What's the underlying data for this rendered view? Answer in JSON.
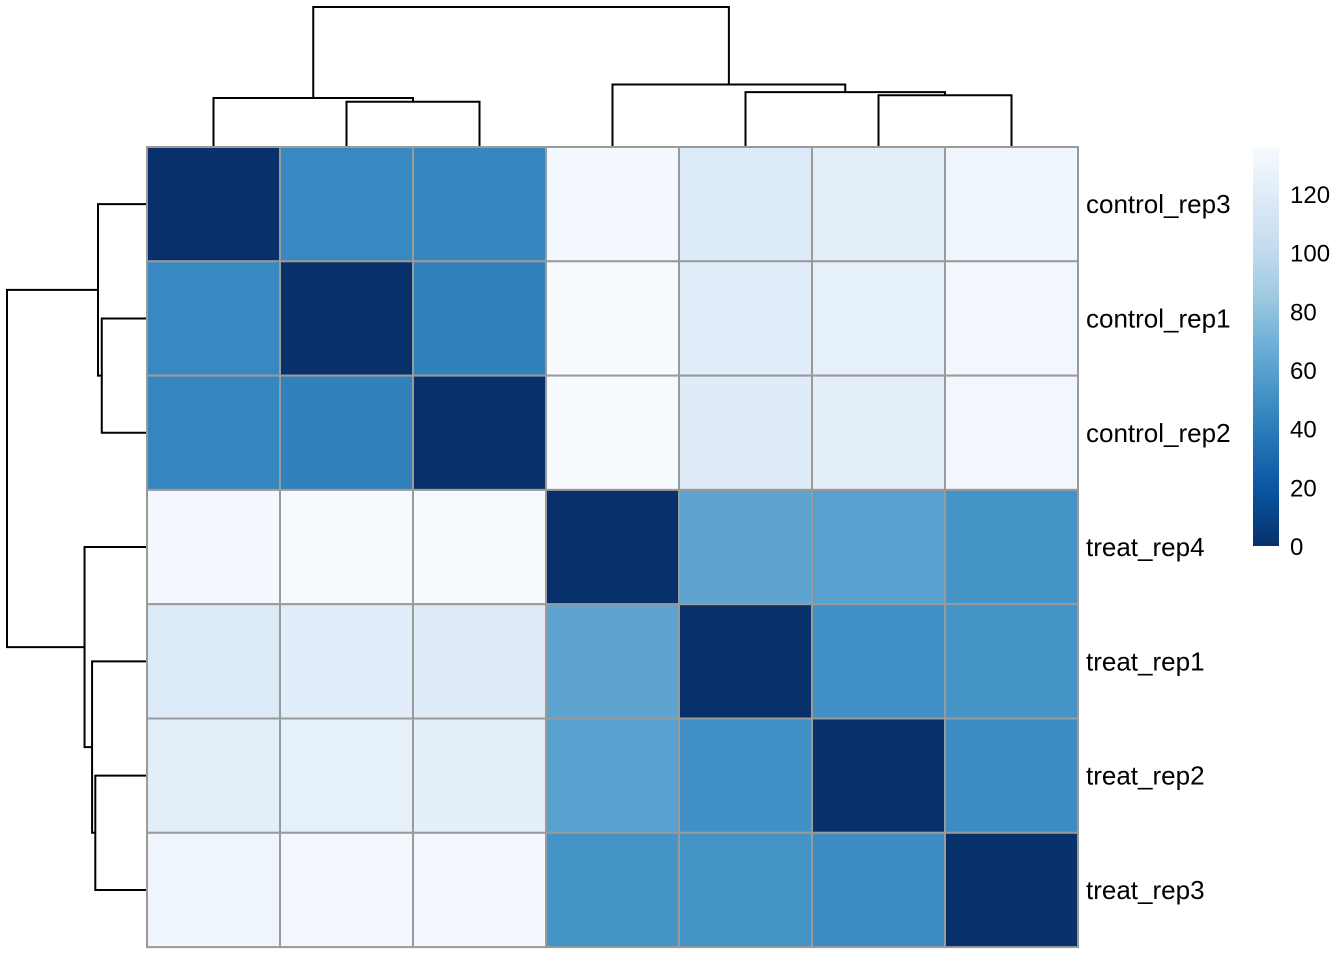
{
  "chart_data": {
    "type": "heatmap",
    "title": "",
    "row_labels": [
      "control_rep3",
      "control_rep1",
      "control_rep2",
      "treat_rep4",
      "treat_rep1",
      "treat_rep2",
      "treat_rep3"
    ],
    "column_labels": [],
    "values": [
      [
        0,
        46,
        45,
        133,
        118,
        122,
        130
      ],
      [
        46,
        0,
        42,
        135,
        121,
        124,
        132
      ],
      [
        45,
        42,
        0,
        135,
        120,
        123,
        132
      ],
      [
        133,
        135,
        135,
        0,
        62,
        60,
        52
      ],
      [
        118,
        121,
        120,
        62,
        0,
        50,
        52
      ],
      [
        122,
        124,
        123,
        60,
        50,
        0,
        48
      ],
      [
        130,
        132,
        132,
        52,
        52,
        48,
        0
      ]
    ],
    "colorbar": {
      "min": 0,
      "max": 136,
      "ticks": [
        0,
        20,
        40,
        60,
        80,
        100,
        120
      ],
      "colors": [
        "#08306b",
        "#08519c",
        "#2171b5",
        "#4292c6",
        "#6baed6",
        "#9ecae1",
        "#c6dbef",
        "#deebf7",
        "#f7fbff"
      ]
    },
    "row_dendrogram": {
      "leaf_order": [
        "control_rep3",
        "control_rep1",
        "control_rep2",
        "treat_rep4",
        "treat_rep1",
        "treat_rep2",
        "treat_rep3"
      ],
      "merges": [
        [
          1,
          2,
          42
        ],
        [
          0,
          7,
          45.5
        ],
        [
          5,
          6,
          48
        ],
        [
          4,
          9,
          51
        ],
        [
          3,
          10,
          58
        ],
        [
          8,
          11,
          130
        ]
      ]
    },
    "column_dendrogram": {
      "leaf_order": [
        "control_rep3",
        "control_rep1",
        "control_rep2",
        "treat_rep4",
        "treat_rep1",
        "treat_rep2",
        "treat_rep3"
      ],
      "merges": [
        [
          1,
          2,
          42
        ],
        [
          0,
          7,
          45.5
        ],
        [
          5,
          6,
          48
        ],
        [
          4,
          9,
          51
        ],
        [
          3,
          10,
          58
        ],
        [
          8,
          11,
          130
        ]
      ]
    },
    "grid": true,
    "legend_position": "right"
  }
}
